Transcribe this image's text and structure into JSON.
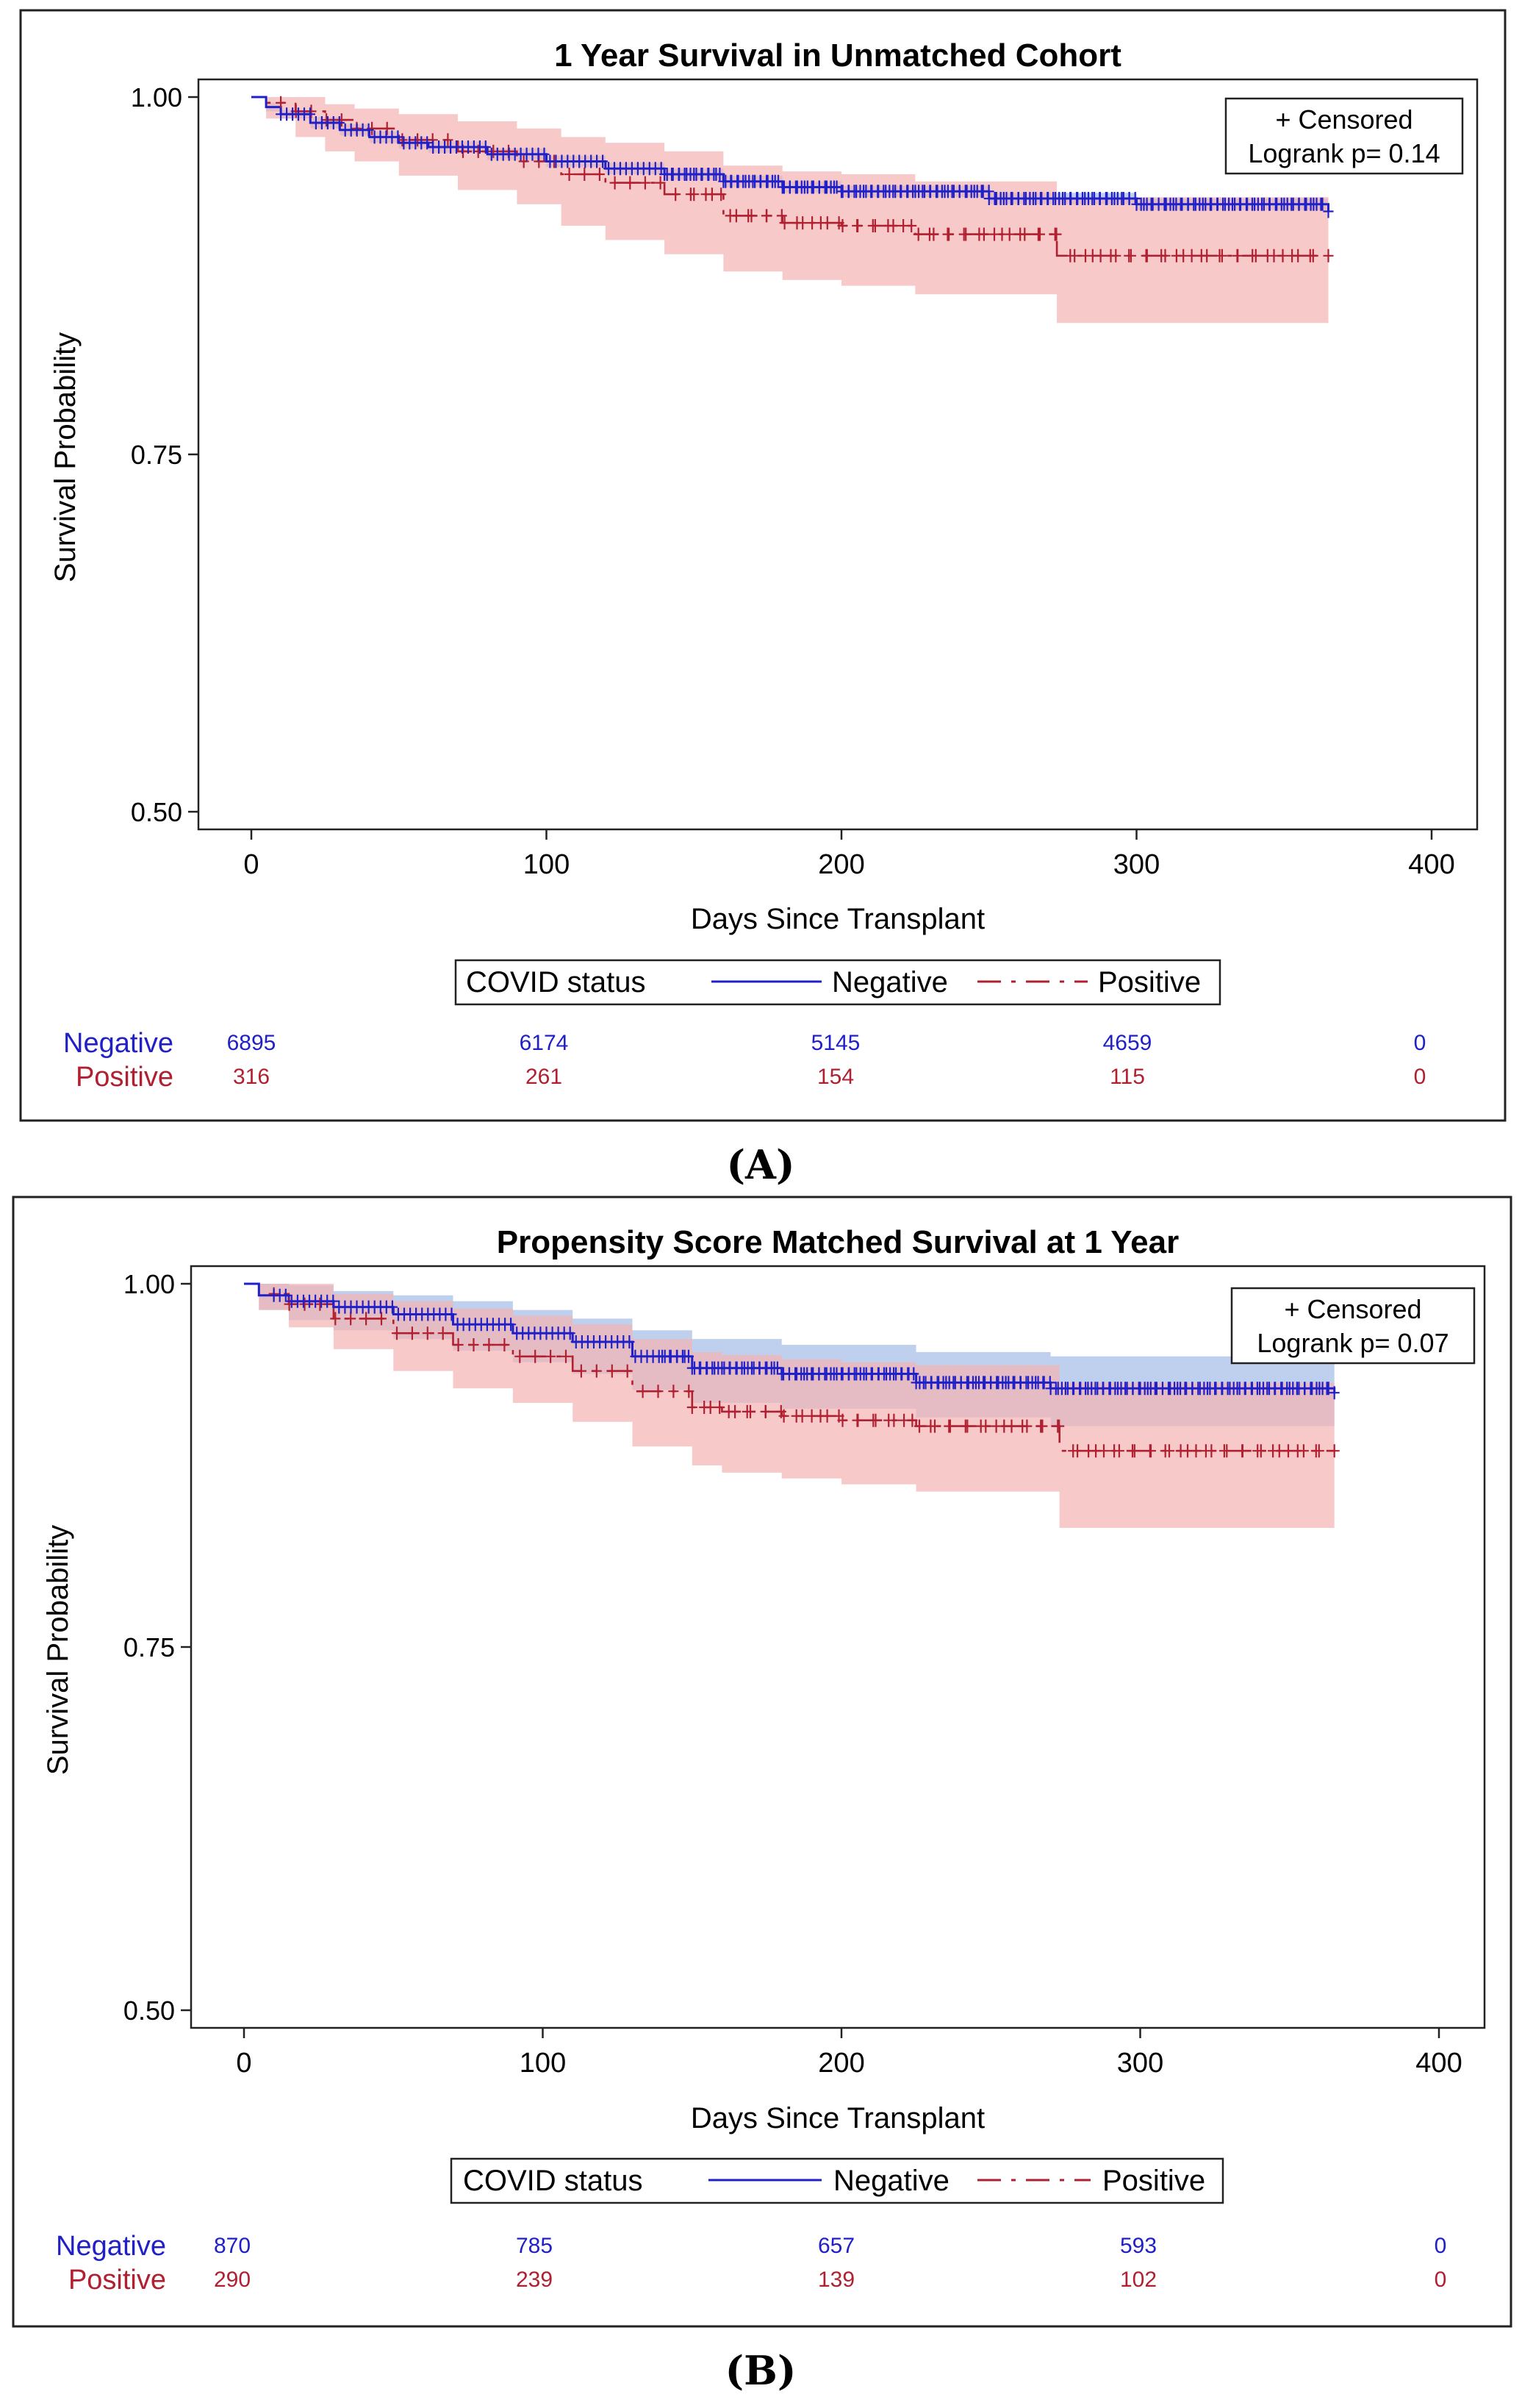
{
  "colors": {
    "negative_line": "#2020c8",
    "negative_band": "#a8c0e8",
    "positive_line": "#b02030",
    "positive_band": "#f4b4b4",
    "frame": "#222222"
  },
  "panels": [
    {
      "label": "(A)",
      "risk_header": {
        "negative": "Negative",
        "positive": "Positive"
      }
    },
    {
      "label": "(B)",
      "risk_header": {
        "negative": "Negative",
        "positive": "Positive"
      }
    }
  ],
  "chart_data": [
    {
      "type": "line",
      "title": "1 Year Survival in Unmatched Cohort",
      "xlabel": "Days Since Transplant",
      "ylabel": "Survival Probability",
      "xlim": [
        0,
        400
      ],
      "ylim": [
        0.5,
        1.0
      ],
      "xticks": [
        0,
        100,
        200,
        300,
        400
      ],
      "yticks": [
        0.5,
        0.75,
        1.0
      ],
      "xtick_labels": [
        "0",
        "100",
        "200",
        "300",
        "400"
      ],
      "ytick_labels": [
        "0.50",
        "0.75",
        "1.00"
      ],
      "inset_text": [
        "+ Censored",
        "Logrank p=  0.14"
      ],
      "legend": {
        "title": "COVID status",
        "entries": [
          "Negative",
          "Positive"
        ],
        "placement": "bottom"
      },
      "series": [
        {
          "name": "Negative",
          "style": "solid",
          "x": [
            0,
            5,
            10,
            20,
            30,
            40,
            50,
            60,
            80,
            100,
            120,
            140,
            160,
            180,
            200,
            250,
            300,
            365
          ],
          "y": [
            1.0,
            0.993,
            0.988,
            0.982,
            0.977,
            0.972,
            0.968,
            0.965,
            0.96,
            0.955,
            0.95,
            0.946,
            0.941,
            0.937,
            0.934,
            0.929,
            0.925,
            0.92
          ],
          "band_low": [
            1.0,
            0.99,
            0.985,
            0.978,
            0.973,
            0.968,
            0.964,
            0.961,
            0.956,
            0.951,
            0.946,
            0.942,
            0.937,
            0.933,
            0.93,
            0.925,
            0.921,
            0.916
          ],
          "band_high": [
            1.0,
            0.996,
            0.991,
            0.986,
            0.981,
            0.976,
            0.972,
            0.969,
            0.964,
            0.959,
            0.954,
            0.95,
            0.945,
            0.941,
            0.938,
            0.933,
            0.929,
            0.924
          ],
          "censored_x_range": [
            10,
            365
          ]
        },
        {
          "name": "Positive",
          "style": "dashed",
          "x": [
            0,
            5,
            15,
            25,
            35,
            50,
            70,
            90,
            105,
            120,
            140,
            160,
            180,
            200,
            225,
            270,
            273,
            300,
            365
          ],
          "y": [
            1.0,
            0.996,
            0.99,
            0.984,
            0.978,
            0.97,
            0.962,
            0.955,
            0.946,
            0.94,
            0.932,
            0.917,
            0.912,
            0.91,
            0.904,
            0.904,
            0.889,
            0.889,
            0.889
          ],
          "band_low": [
            1.0,
            0.985,
            0.972,
            0.962,
            0.955,
            0.945,
            0.935,
            0.925,
            0.91,
            0.9,
            0.89,
            0.878,
            0.872,
            0.868,
            0.862,
            0.862,
            0.842,
            0.842,
            0.842
          ],
          "band_high": [
            1.0,
            1.0,
            1.0,
            0.995,
            0.992,
            0.988,
            0.983,
            0.978,
            0.972,
            0.968,
            0.962,
            0.952,
            0.948,
            0.946,
            0.941,
            0.941,
            0.93,
            0.93,
            0.93
          ],
          "censored_x_range": [
            10,
            365
          ]
        }
      ],
      "risk_table": {
        "x": [
          0,
          100,
          200,
          300,
          400
        ],
        "Negative": [
          "6895",
          "6174",
          "5145",
          "4659",
          "0"
        ],
        "Positive": [
          "316",
          "261",
          "154",
          "115",
          "0"
        ]
      }
    },
    {
      "type": "line",
      "title": "Propensity Score Matched Survival at 1 Year",
      "xlabel": "Days Since Transplant",
      "ylabel": "Survival Probability",
      "xlim": [
        0,
        400
      ],
      "ylim": [
        0.5,
        1.0
      ],
      "xticks": [
        0,
        100,
        200,
        300,
        400
      ],
      "yticks": [
        0.5,
        0.75,
        1.0
      ],
      "xtick_labels": [
        "0",
        "100",
        "200",
        "300",
        "400"
      ],
      "ytick_labels": [
        "0.50",
        "0.75",
        "1.00"
      ],
      "inset_text": [
        "+ Censored",
        "Logrank p=  0.07"
      ],
      "legend": {
        "title": "COVID status",
        "entries": [
          "Negative",
          "Positive"
        ],
        "placement": "bottom"
      },
      "series": [
        {
          "name": "Negative",
          "style": "solid",
          "x": [
            0,
            5,
            15,
            30,
            50,
            70,
            90,
            110,
            130,
            150,
            180,
            225,
            270,
            300,
            365
          ],
          "y": [
            1.0,
            0.992,
            0.988,
            0.984,
            0.979,
            0.972,
            0.966,
            0.96,
            0.95,
            0.942,
            0.938,
            0.932,
            0.928,
            0.928,
            0.925
          ],
          "band_low": [
            1.0,
            0.982,
            0.975,
            0.968,
            0.962,
            0.954,
            0.946,
            0.938,
            0.927,
            0.918,
            0.914,
            0.908,
            0.902,
            0.902,
            0.898
          ],
          "band_high": [
            1.0,
            1.0,
            0.999,
            0.995,
            0.992,
            0.988,
            0.982,
            0.976,
            0.968,
            0.962,
            0.958,
            0.953,
            0.95,
            0.95,
            0.948
          ],
          "censored_x_range": [
            10,
            365
          ]
        },
        {
          "name": "Positive",
          "style": "dashed",
          "x": [
            0,
            5,
            15,
            30,
            50,
            70,
            90,
            110,
            130,
            150,
            160,
            180,
            200,
            225,
            270,
            273,
            300,
            365
          ],
          "y": [
            1.0,
            0.993,
            0.986,
            0.976,
            0.966,
            0.958,
            0.95,
            0.94,
            0.926,
            0.915,
            0.912,
            0.909,
            0.906,
            0.902,
            0.902,
            0.885,
            0.885,
            0.885
          ],
          "band_low": [
            1.0,
            0.982,
            0.97,
            0.955,
            0.94,
            0.928,
            0.918,
            0.905,
            0.888,
            0.875,
            0.87,
            0.866,
            0.862,
            0.857,
            0.857,
            0.832,
            0.832,
            0.832
          ],
          "band_high": [
            1.0,
            1.0,
            1.0,
            0.993,
            0.988,
            0.983,
            0.978,
            0.972,
            0.962,
            0.953,
            0.951,
            0.948,
            0.946,
            0.944,
            0.944,
            0.932,
            0.932,
            0.932
          ],
          "censored_x_range": [
            10,
            365
          ]
        }
      ],
      "risk_table": {
        "x": [
          0,
          100,
          200,
          300,
          400
        ],
        "Negative": [
          "870",
          "785",
          "657",
          "593",
          "0"
        ],
        "Positive": [
          "290",
          "239",
          "139",
          "102",
          "0"
        ]
      }
    }
  ]
}
